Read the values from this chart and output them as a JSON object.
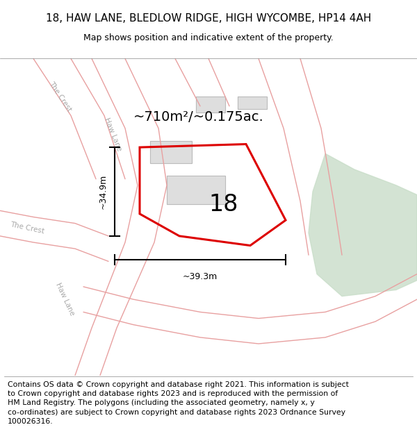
{
  "title": "18, HAW LANE, BLEDLOW RIDGE, HIGH WYCOMBE, HP14 4AH",
  "subtitle": "Map shows position and indicative extent of the property.",
  "footer_line1": "Contains OS data © Crown copyright and database right 2021. This information is subject",
  "footer_line2": "to Crown copyright and database rights 2023 and is reproduced with the permission of",
  "footer_line3": "HM Land Registry. The polygons (including the associated geometry, namely x, y",
  "footer_line4": "co-ordinates) are subject to Crown copyright and database rights 2023 Ordnance Survey",
  "footer_line5": "100026316.",
  "area_label": "~710m²/~0.175ac.",
  "number_label": "18",
  "dim_width": "~39.3m",
  "dim_height": "~34.9m",
  "bg_color": "#f2f0ed",
  "road_line_color": "#e8a0a0",
  "green_color": "#c8ddc8",
  "building_color": "#d0d0d0",
  "building_edge_color": "#bbbbbb",
  "plot_edge_color": "#dd0000",
  "street_label_color": "#aaaaaa",
  "title_fontsize": 11,
  "subtitle_fontsize": 9,
  "footer_fontsize": 7.8,
  "area_fontsize": 14,
  "number_fontsize": 24,
  "dim_fontsize": 9
}
